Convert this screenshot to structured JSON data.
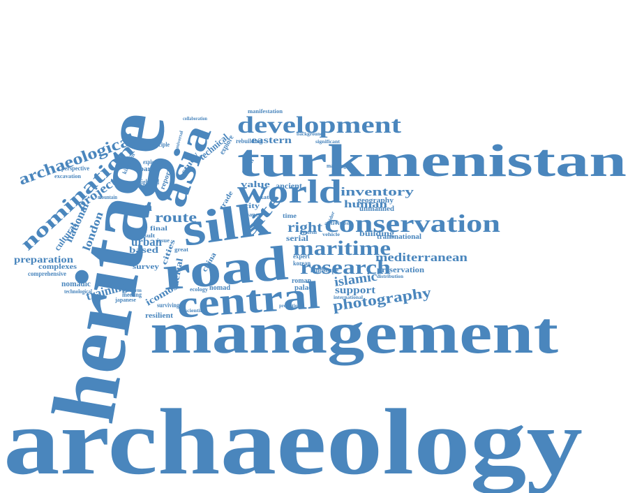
{
  "color": "#4a86bd",
  "words": [
    "archaeology",
    "heritage",
    "management",
    "turkmenistan",
    "road",
    "silk",
    "central",
    "asia",
    "world",
    "development",
    "conservation",
    "maritime",
    "research",
    "archaeological",
    "nomination",
    "mediterranean",
    "photography",
    "inventory",
    "human",
    "site",
    "route",
    "right",
    "eastern",
    "value",
    "ancient",
    "islamic",
    "support",
    "bhutan",
    "urban",
    "based",
    "london",
    "national",
    "project",
    "cultural",
    "training",
    "preparation",
    "complexes",
    "nomadic",
    "survey",
    "icomos",
    "cities",
    "aerial",
    "city",
    "serial",
    "roman",
    "palace",
    "preservation",
    "building",
    "unmanned",
    "geography",
    "technical",
    "study",
    "report",
    "partie",
    "exploring",
    "highland",
    "principle",
    "perspective",
    "excavation",
    "kingdom",
    "mountain",
    "medieval",
    "technological",
    "meeting",
    "japanese",
    "resilient",
    "surviving",
    "great",
    "china",
    "nomad",
    "ecology",
    "platform",
    "trade",
    "explore",
    "rebuilding",
    "manifestation",
    "collaboration",
    "background",
    "significant",
    "mapping",
    "transnational",
    "landscape",
    "expert",
    "korean",
    "system",
    "international",
    "comprehensive",
    "final",
    "result",
    "state",
    "kalon",
    "time",
    "paper",
    "issue",
    "protection",
    "scientific",
    "vehicle",
    "activities",
    "distribution",
    "universal",
    "corridor"
  ]
}
